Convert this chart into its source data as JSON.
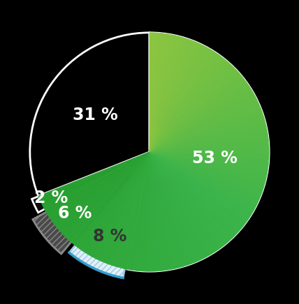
{
  "slices": [
    53,
    8,
    6,
    2,
    31
  ],
  "labels": [
    "53 %",
    "8 %",
    "6 %",
    "2 %",
    "31 %"
  ],
  "colors": [
    "#2175bc",
    "#dff0f8",
    "#4a4a4a",
    "#0d0d0d",
    "#3cb54a"
  ],
  "hatch": [
    "",
    "////",
    "////",
    "",
    ""
  ],
  "explode": [
    0,
    0.08,
    0.13,
    0.06,
    0
  ],
  "start_angle": 90,
  "figsize": [
    4.28,
    4.36
  ],
  "dpi": 100,
  "background": "#000000",
  "label_colors": [
    "#ffffff",
    "#333333",
    "#ffffff",
    "#ffffff",
    "#ffffff"
  ],
  "label_fontsize": 17,
  "label_fontweight": "bold",
  "edge_color": "white",
  "edge_width": 2.0,
  "green_top": "#a8d840",
  "green_bottom": "#28a030",
  "blue_arc_color": "#3399cc"
}
